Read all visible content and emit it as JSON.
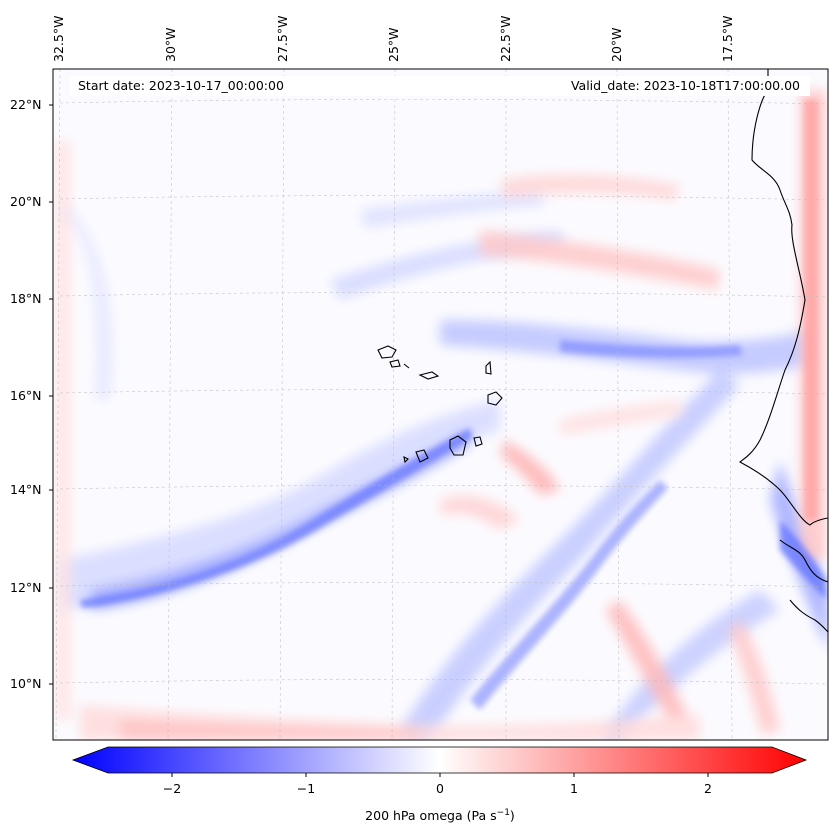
{
  "map": {
    "start_label": "Start date: 2023-10-17_00:00:00",
    "valid_label": "Valid_date: 2023-10-18T17:00:00.00",
    "top_lon_labels": [
      "32.5°W",
      "30°W",
      "27.5°W",
      "25°W",
      "22.5°W",
      "20°W",
      "17.5°W"
    ],
    "left_lat_labels": [
      "22°N",
      "20°N",
      "18°N",
      "16°N",
      "14°N",
      "12°N",
      "10°N"
    ],
    "field": "200 hPa omega",
    "units_text": "Pa s",
    "units_superscript": "−1",
    "colors": {
      "negative": "#0000ff",
      "zero": "#ffffff",
      "positive": "#ff0000"
    },
    "features": [
      "coastline-west-africa",
      "cape-verde-islands"
    ]
  },
  "colorbar": {
    "min": -2.7,
    "max": 2.7,
    "ticks": [
      "−2",
      "−1",
      "0",
      "1",
      "2"
    ],
    "extend": "both"
  }
}
